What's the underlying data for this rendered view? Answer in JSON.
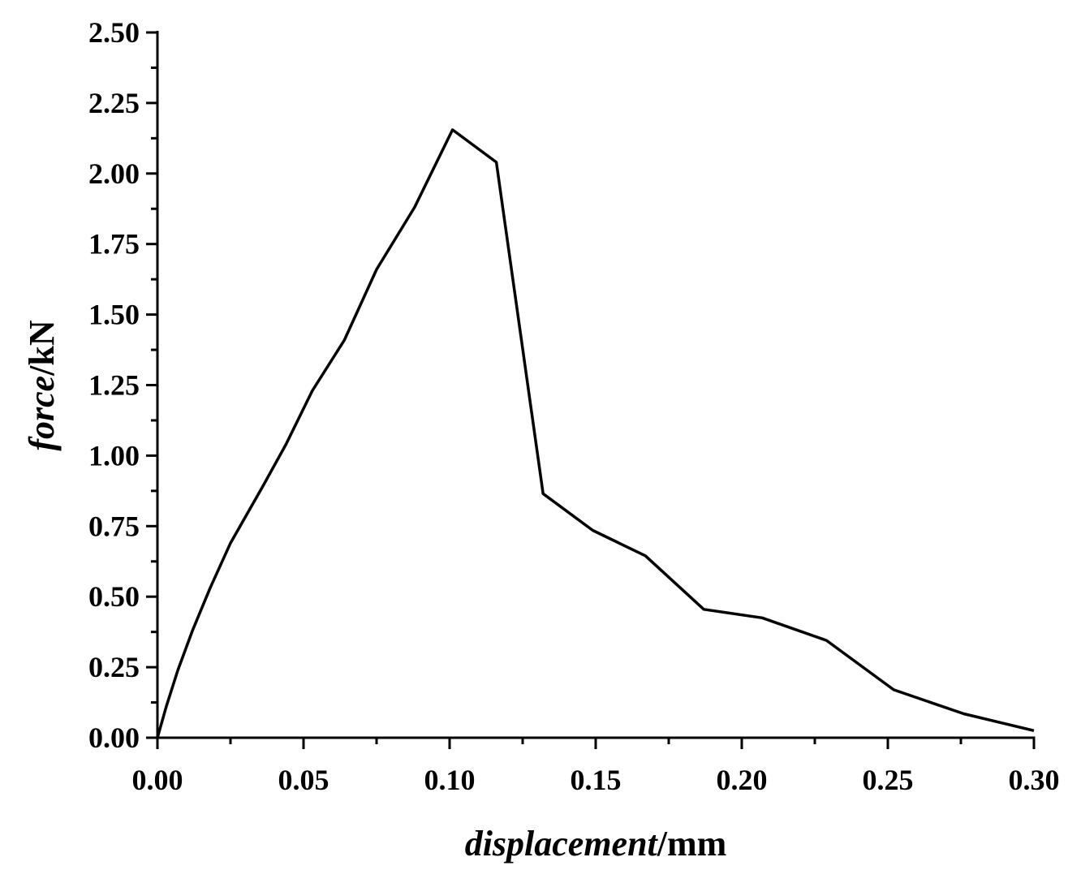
{
  "chart_data": {
    "type": "line",
    "title": "",
    "xlabel": {
      "italic": "displacement",
      "unit": "/mm"
    },
    "ylabel": {
      "italic": "force",
      "unit": "/kN"
    },
    "xlim": [
      0,
      0.3
    ],
    "ylim": [
      0,
      2.5
    ],
    "xticks": [
      "0.00",
      "0.05",
      "0.10",
      "0.15",
      "0.20",
      "0.25",
      "0.30"
    ],
    "yticks": [
      "0.00",
      "0.25",
      "0.50",
      "0.75",
      "1.00",
      "1.25",
      "1.50",
      "1.75",
      "2.00",
      "2.25",
      "2.50"
    ],
    "grid": false,
    "legend": "none",
    "line_color": "#000000",
    "series": [
      {
        "x": [
          0.0,
          0.003,
          0.007,
          0.012,
          0.018,
          0.025,
          0.036,
          0.044,
          0.053,
          0.064,
          0.075,
          0.088,
          0.101,
          0.116,
          0.132,
          0.149,
          0.167,
          0.187,
          0.207,
          0.229,
          0.252,
          0.276,
          0.3
        ],
        "y": [
          0.0,
          0.11,
          0.24,
          0.38,
          0.53,
          0.69,
          0.89,
          1.04,
          1.23,
          1.41,
          1.66,
          1.88,
          2.155,
          2.04,
          0.865,
          0.735,
          0.645,
          0.455,
          0.425,
          0.345,
          0.17,
          0.085,
          0.025
        ]
      }
    ]
  }
}
